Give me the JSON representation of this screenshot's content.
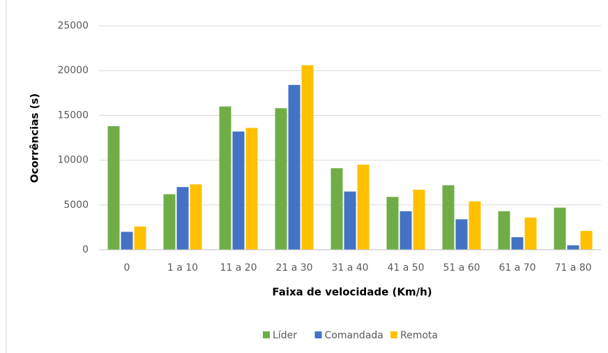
{
  "chart_data": {
    "type": "bar",
    "x_label": "Faixa de velocidade (Km/h)",
    "y_label": "Ocorrências (s)",
    "categories": [
      "0",
      "1 a 10",
      "11 a 20",
      "21 a 30",
      "31 a 40",
      "41 a 50",
      "51 a 60",
      "61 a 70",
      "71 a 80"
    ],
    "series": [
      {
        "name": "Líder",
        "color": "#70ad47",
        "values": [
          13800,
          6200,
          16000,
          15800,
          9100,
          5900,
          7200,
          4300,
          4700
        ]
      },
      {
        "name": "Comandada",
        "color": "#4472c4",
        "values": [
          2000,
          7000,
          13200,
          18400,
          6500,
          4300,
          3400,
          1400,
          500
        ]
      },
      {
        "name": "Remota",
        "color": "#ffc000",
        "values": [
          2600,
          7300,
          13600,
          20600,
          9500,
          6700,
          5400,
          3600,
          2100
        ]
      }
    ],
    "ylim": [
      0,
      25000
    ],
    "yticks": [
      0,
      5000,
      10000,
      15000,
      20000,
      25000
    ],
    "grid": true,
    "legend": "bottom"
  }
}
